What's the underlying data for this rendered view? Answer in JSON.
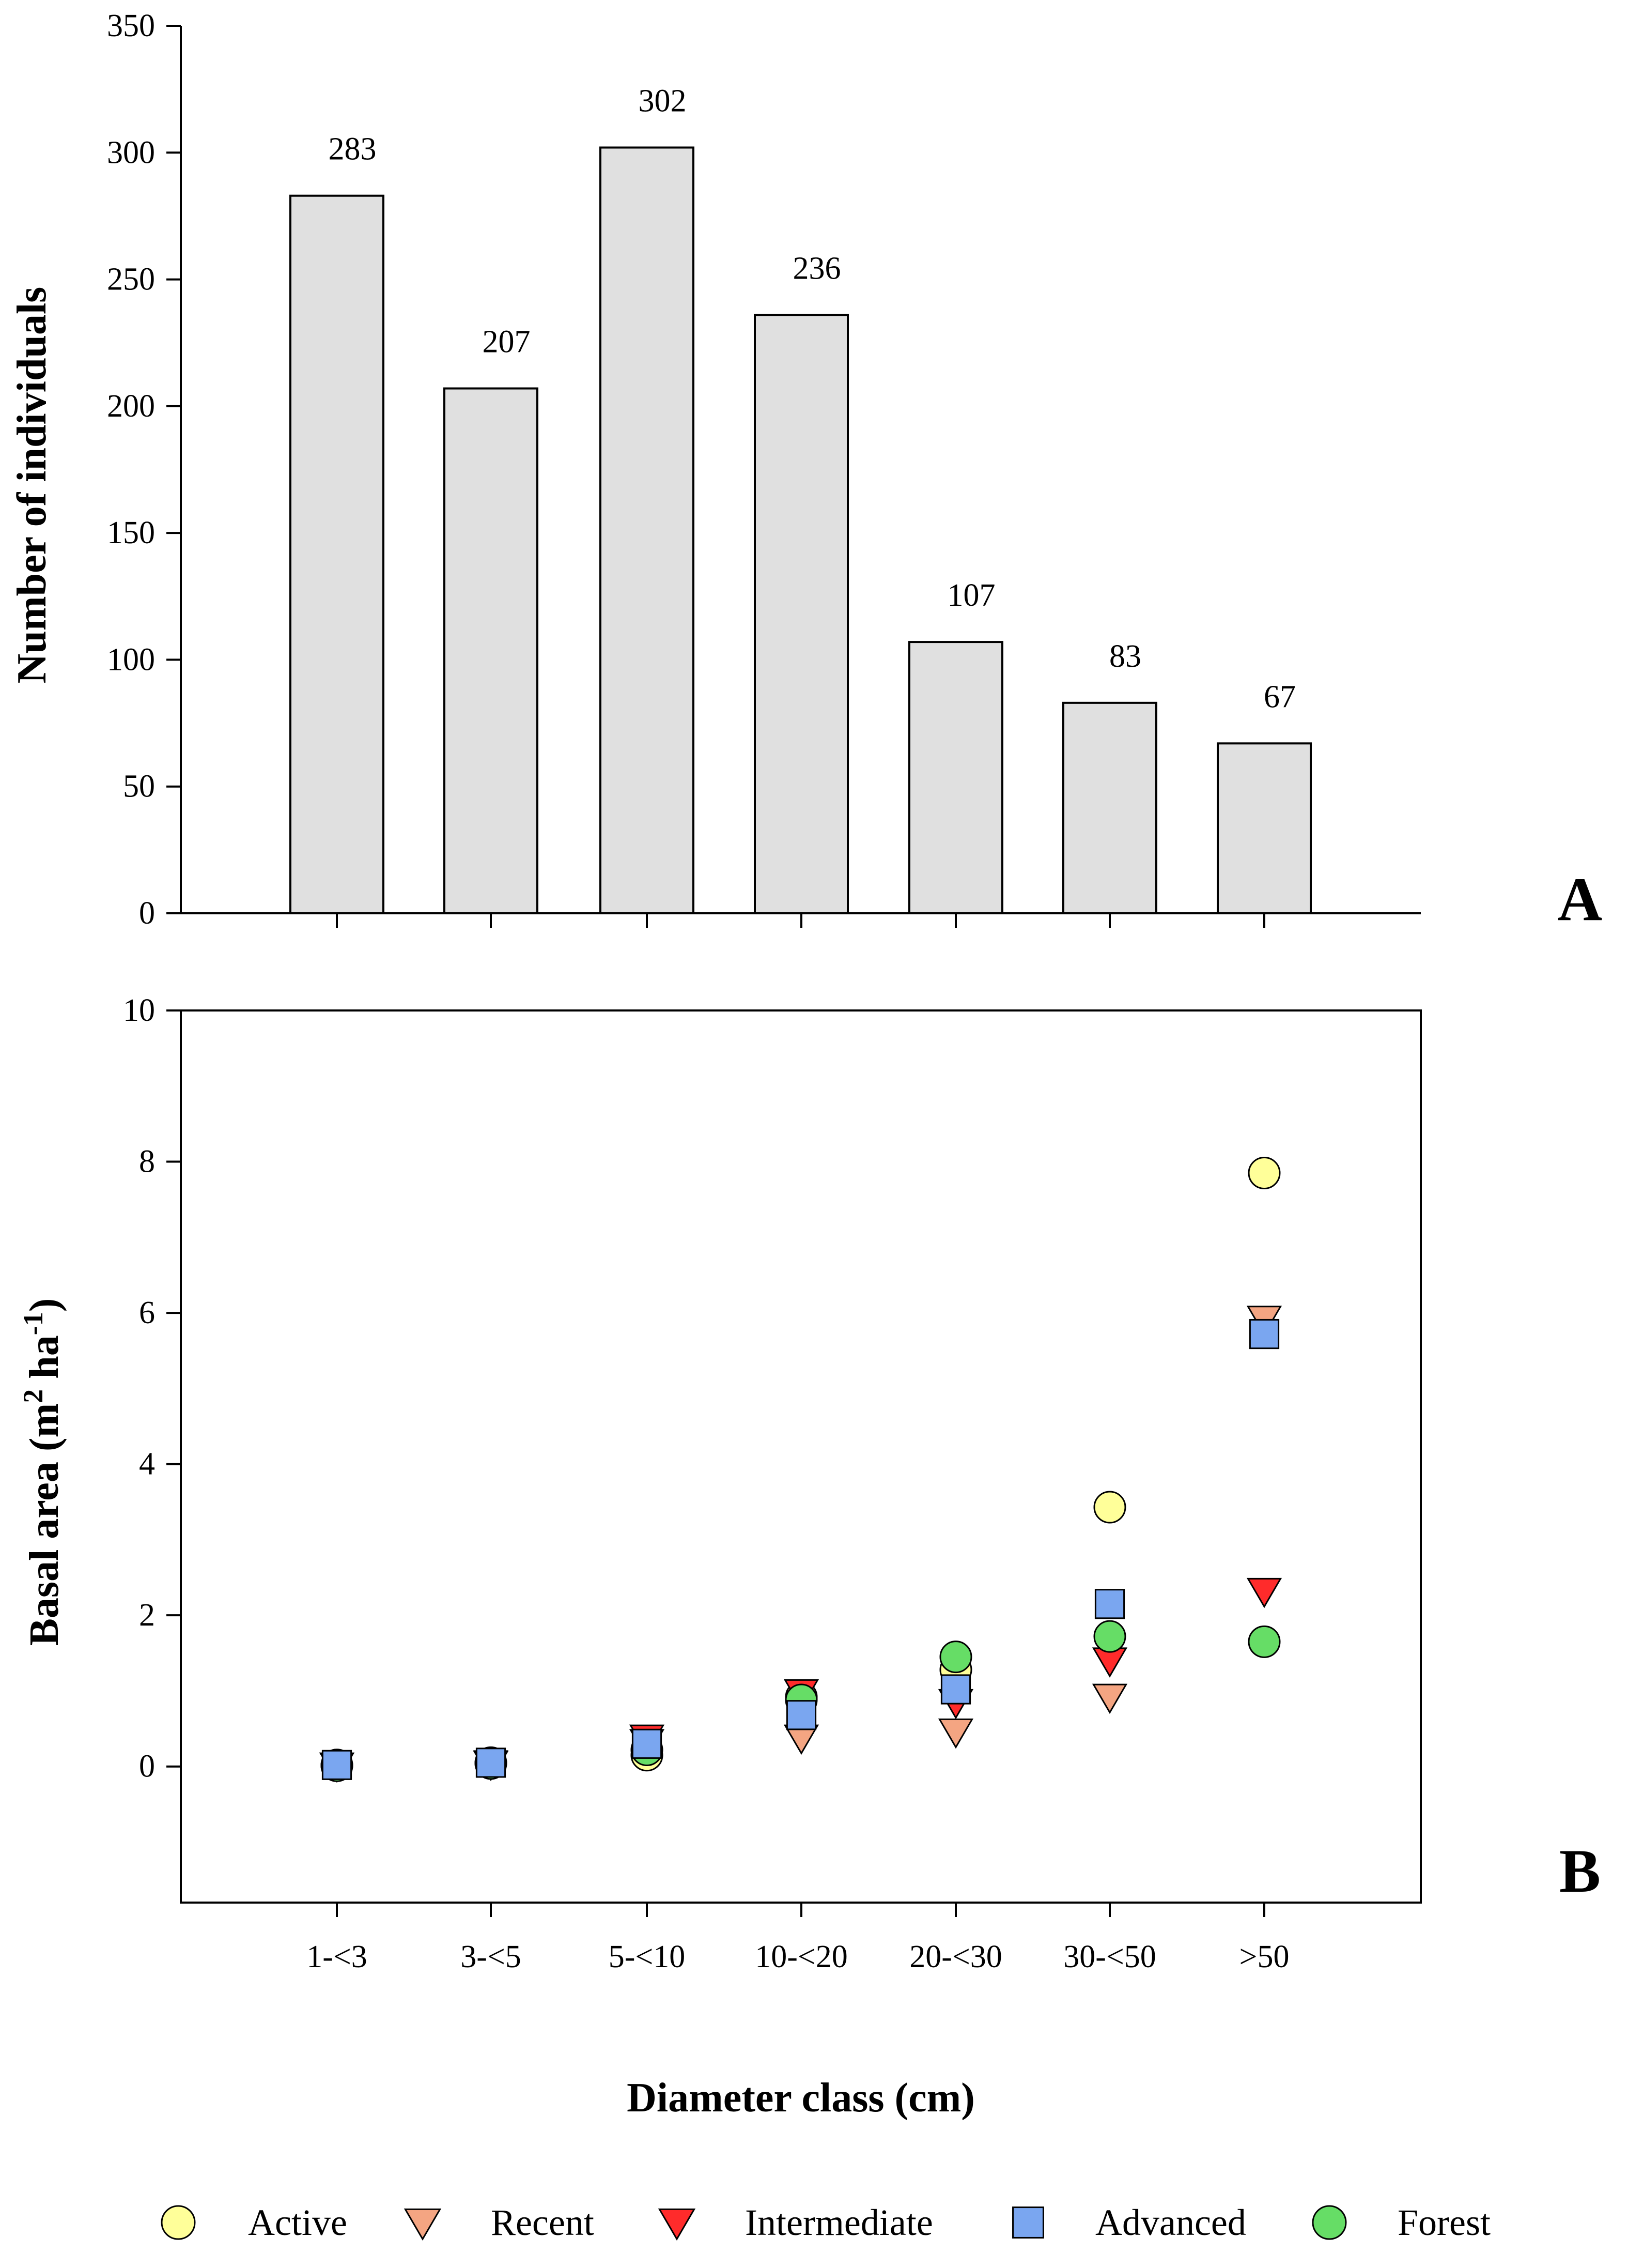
{
  "chart_data": [
    {
      "panel": "A",
      "type": "bar",
      "categories": [
        "1-<3",
        "3-<5",
        "5-<10",
        "10-<20",
        "20-<30",
        "30-<50",
        ">50"
      ],
      "values": [
        283,
        207,
        302,
        236,
        107,
        83,
        67
      ],
      "data_labels": [
        "283",
        "207",
        "302",
        "236",
        "107",
        "83",
        "67"
      ],
      "ylabel": "Number of individuals",
      "ylim": [
        0,
        350
      ],
      "yticks": [
        "0",
        "50",
        "100",
        "150",
        "200",
        "250",
        "300",
        "350"
      ],
      "bar_color": "#e0e0e0",
      "grid": false
    },
    {
      "panel": "B",
      "type": "scatter",
      "categories": [
        "1-<3",
        "3-<5",
        "5-<10",
        "10-<20",
        "20-<30",
        "30-<50",
        ">50"
      ],
      "xlabel": "Diameter class (cm)",
      "ylabel_main": "Basal area (m",
      "ylabel_sup1": "2",
      "ylabel_mid": " ha",
      "ylabel_sup2": "-1",
      "ylabel_end": ")",
      "ylim": [
        -1.8,
        10
      ],
      "yticks": [
        "0",
        "2",
        "4",
        "6",
        "8",
        "10"
      ],
      "grid": false,
      "series": [
        {
          "name": "Active",
          "marker": "circle",
          "color": "#ffff99",
          "values": [
            0.02,
            0.05,
            0.15,
            0.92,
            1.28,
            3.43,
            7.85
          ]
        },
        {
          "name": "Recent",
          "marker": "triangle-down",
          "color": "#f4a582",
          "values": [
            0.01,
            0.03,
            0.32,
            0.38,
            0.46,
            0.92,
            5.92
          ]
        },
        {
          "name": "Intermediate",
          "marker": "triangle-down",
          "color": "#ff2b2b",
          "values": [
            0.01,
            0.04,
            0.38,
            0.98,
            0.85,
            1.4,
            2.32
          ]
        },
        {
          "name": "Advanced",
          "marker": "square",
          "color": "#7aa6f0",
          "values": [
            0.02,
            0.05,
            0.3,
            0.68,
            1.02,
            2.15,
            5.72
          ]
        },
        {
          "name": "Forest",
          "marker": "circle",
          "color": "#66dd66",
          "values": [
            0.01,
            0.04,
            0.22,
            0.88,
            1.45,
            1.72,
            1.65
          ]
        }
      ]
    }
  ],
  "legend_position": "bottom"
}
